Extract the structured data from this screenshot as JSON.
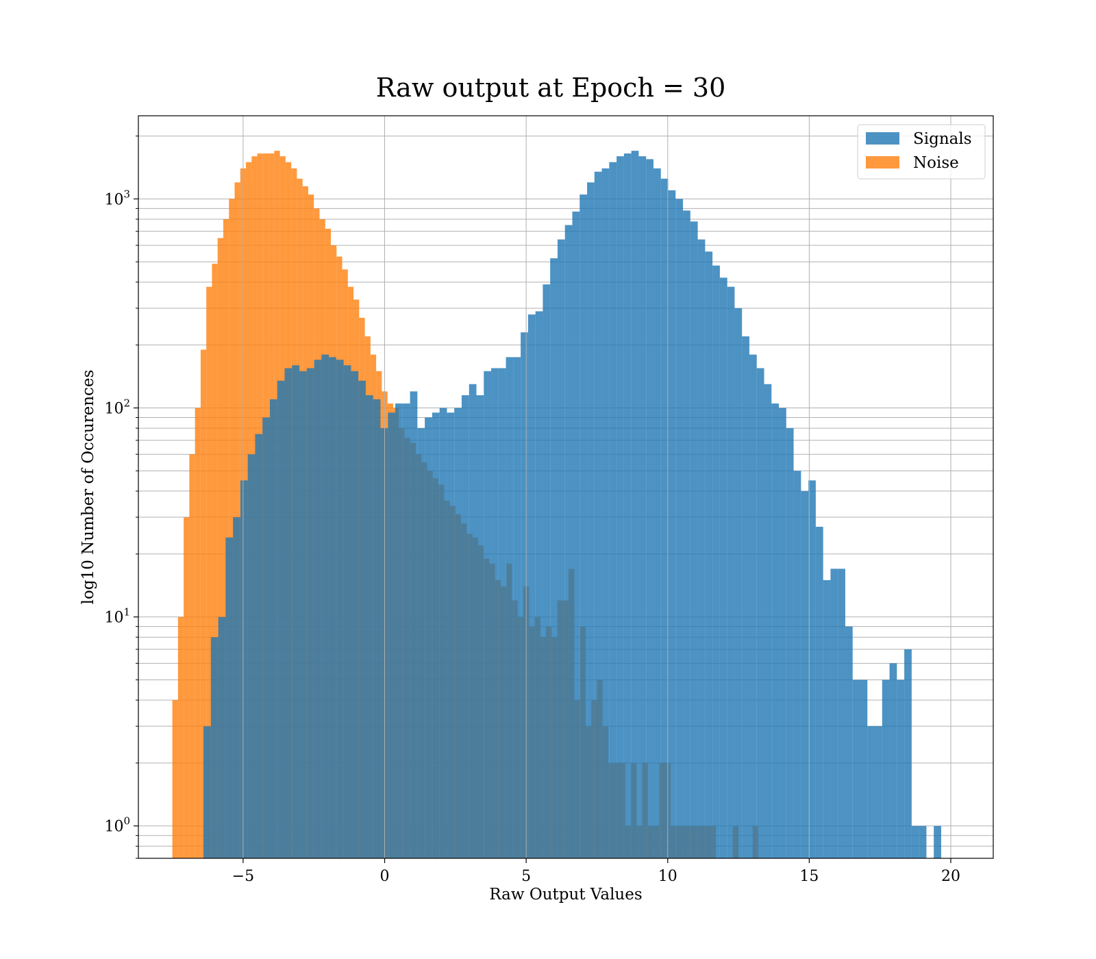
{
  "chart_data": {
    "type": "bar",
    "title": "Raw output at Epoch = 30",
    "xlabel": "Raw Output Values",
    "ylabel": "log10 Number of Occurences",
    "xlim": [
      -8.7,
      21.5
    ],
    "ylim": [
      0.7,
      2500
    ],
    "yscale": "log",
    "grid": true,
    "legend_position": "top-right",
    "x_ticks": [
      {
        "value": -5,
        "label": "−5"
      },
      {
        "value": 0,
        "label": "0"
      },
      {
        "value": 5,
        "label": "5"
      },
      {
        "value": 10,
        "label": "10"
      },
      {
        "value": 15,
        "label": "15"
      },
      {
        "value": 20,
        "label": "20"
      }
    ],
    "y_ticks": [
      {
        "value": 1,
        "base": "10",
        "exp": "0"
      },
      {
        "value": 10,
        "base": "10",
        "exp": "1"
      },
      {
        "value": 100,
        "base": "10",
        "exp": "2"
      },
      {
        "value": 1000,
        "base": "10",
        "exp": "3"
      }
    ],
    "series": [
      {
        "name": "Noise",
        "color": "#ff7f0e",
        "opacity": 0.8,
        "bin_start": -7.5,
        "bin_width": 0.2,
        "values": [
          4,
          10,
          30,
          60,
          100,
          190,
          380,
          490,
          650,
          800,
          1000,
          1200,
          1400,
          1500,
          1600,
          1650,
          1650,
          1650,
          1700,
          1600,
          1500,
          1400,
          1250,
          1150,
          1050,
          900,
          800,
          720,
          600,
          530,
          460,
          380,
          330,
          270,
          220,
          180,
          150,
          120,
          105,
          100,
          80,
          72,
          68,
          60,
          55,
          50,
          46,
          43,
          36,
          34,
          31,
          28,
          25,
          24,
          22,
          19,
          18,
          15,
          14,
          18,
          12,
          10,
          14,
          9,
          10,
          8,
          9,
          8,
          12,
          12,
          17,
          4,
          9,
          3,
          4,
          5,
          3,
          2,
          2,
          2,
          1,
          2,
          1,
          2,
          1,
          1,
          2,
          2,
          1,
          1,
          1,
          1,
          1,
          1,
          1,
          1,
          0,
          0,
          0,
          1
        ],
        "upper_bins": [
          {
            "x": 13.0,
            "value": 1
          }
        ]
      },
      {
        "name": "Signals",
        "color": "#1f77b4",
        "opacity": 0.8,
        "bin_start": -6.4,
        "bin_width": 0.2606,
        "values": [
          3,
          8,
          10,
          24,
          30,
          45,
          60,
          75,
          90,
          110,
          135,
          155,
          160,
          150,
          155,
          170,
          180,
          175,
          170,
          160,
          150,
          135,
          115,
          110,
          80,
          95,
          105,
          105,
          120,
          80,
          90,
          95,
          100,
          95,
          100,
          115,
          130,
          115,
          150,
          155,
          155,
          175,
          175,
          230,
          280,
          290,
          390,
          520,
          640,
          750,
          870,
          1050,
          1200,
          1350,
          1400,
          1500,
          1600,
          1650,
          1700,
          1600,
          1550,
          1400,
          1250,
          1100,
          1000,
          880,
          780,
          640,
          560,
          480,
          420,
          380,
          300,
          220,
          180,
          155,
          130,
          105,
          100,
          80,
          50,
          40,
          45,
          27,
          15,
          17,
          17,
          9,
          5,
          5,
          3,
          3,
          5,
          6,
          5,
          7,
          1,
          1,
          0,
          1
        ]
      }
    ]
  }
}
